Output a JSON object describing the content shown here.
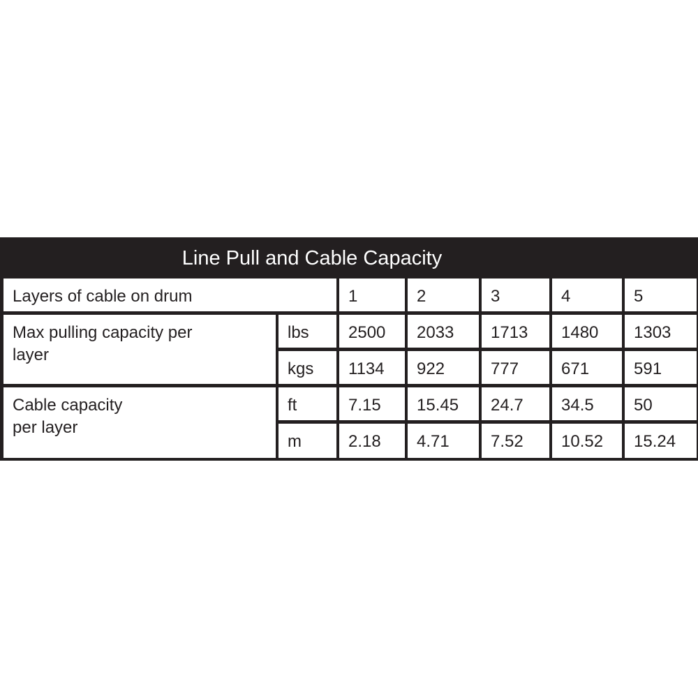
{
  "title": "Line Pull and Cable Capacity",
  "header": {
    "label": "Layers of cable on drum",
    "layers": [
      "1",
      "2",
      "3",
      "4",
      "5"
    ]
  },
  "groups": [
    {
      "label": "Max pulling capacity per\nlayer",
      "rows": [
        {
          "unit": "lbs",
          "values": [
            "2500",
            "2033",
            "1713",
            "1480",
            "1303"
          ]
        },
        {
          "unit": "kgs",
          "values": [
            "1134",
            "922",
            "777",
            "671",
            "591"
          ]
        }
      ]
    },
    {
      "label": "Cable capacity\n per layer",
      "rows": [
        {
          "unit": "ft",
          "values": [
            "7.15",
            "15.45",
            "24.7",
            "34.5",
            "50"
          ]
        },
        {
          "unit": "m",
          "values": [
            "2.18",
            "4.71",
            "7.52",
            "10.52",
            "15.24"
          ]
        }
      ]
    }
  ]
}
